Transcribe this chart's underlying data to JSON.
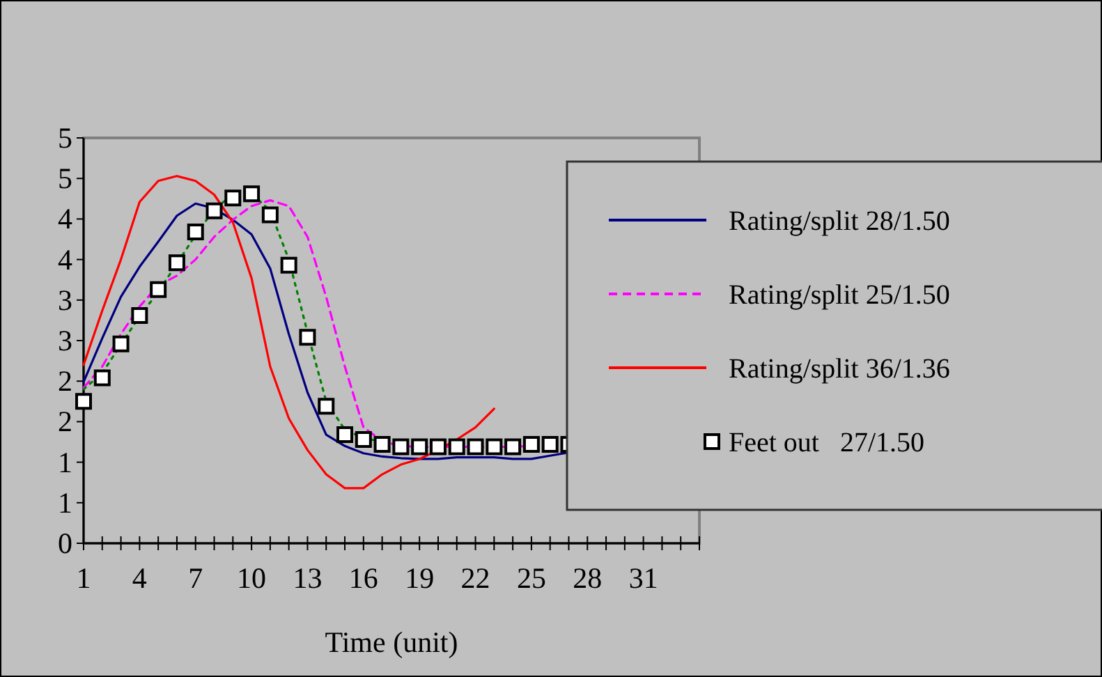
{
  "chart_data": {
    "type": "line",
    "xlabel": "Time (unit)",
    "xlim": [
      1,
      34
    ],
    "xticks": [
      1,
      {
        "value": 2,
        "label": null
      },
      {
        "value": 3,
        "label": null
      },
      4,
      {
        "value": 5,
        "label": null
      },
      {
        "value": 6,
        "label": null
      },
      7,
      {
        "value": 8,
        "label": null
      },
      {
        "value": 9,
        "label": null
      },
      10,
      {
        "value": 11,
        "label": null
      },
      {
        "value": 12,
        "label": null
      },
      13,
      {
        "value": 14,
        "label": null
      },
      {
        "value": 15,
        "label": null
      },
      16,
      {
        "value": 17,
        "label": null
      },
      {
        "value": 18,
        "label": null
      },
      19,
      {
        "value": 20,
        "label": null
      },
      {
        "value": 21,
        "label": null
      },
      22,
      {
        "value": 23,
        "label": null
      },
      {
        "value": 24,
        "label": null
      },
      25,
      {
        "value": 26,
        "label": null
      },
      {
        "value": 27,
        "label": null
      },
      28,
      {
        "value": 29,
        "label": null
      },
      {
        "value": 30,
        "label": null
      },
      31,
      {
        "value": 32,
        "label": null
      },
      {
        "value": 33,
        "label": null
      },
      {
        "value": 34,
        "label": null
      }
    ],
    "ylim": [
      0,
      5
    ],
    "yticks": [
      0,
      {
        "value": 0.5,
        "label": "1"
      },
      1,
      {
        "value": 1.5,
        "label": "2"
      },
      2,
      {
        "value": 2.5,
        "label": "3"
      },
      3,
      {
        "value": 3.5,
        "label": "4"
      },
      4,
      {
        "value": 4.5,
        "label": "5"
      },
      5
    ],
    "grid": false,
    "legend": "right",
    "series": [
      {
        "name": "Rating/split 28/1.50",
        "color": "#000080",
        "line_style": "solid",
        "x": [
          1,
          2,
          3,
          4,
          5,
          6,
          7,
          8,
          9,
          10,
          11,
          12,
          13,
          14,
          15,
          16,
          17,
          18,
          19,
          20,
          21,
          22,
          23,
          24,
          25,
          26,
          27
        ],
        "values": [
          1.99,
          2.53,
          3.04,
          3.41,
          3.72,
          4.04,
          4.19,
          4.13,
          3.99,
          3.81,
          3.39,
          2.58,
          1.86,
          1.34,
          1.2,
          1.11,
          1.07,
          1.05,
          1.04,
          1.04,
          1.06,
          1.06,
          1.06,
          1.04,
          1.04,
          1.08,
          1.12
        ]
      },
      {
        "name": "Rating/split 25/1.50",
        "color": "#ff00ff",
        "line_style": "dashed",
        "x": [
          1,
          2,
          3,
          4,
          5,
          6,
          7,
          8,
          9,
          10,
          11,
          12,
          13,
          14,
          15,
          16,
          17,
          18,
          19,
          20,
          21,
          22,
          23,
          24,
          25
        ],
        "values": [
          1.92,
          2.18,
          2.58,
          2.92,
          3.18,
          3.3,
          3.5,
          3.78,
          3.99,
          4.16,
          4.23,
          4.16,
          3.78,
          3.04,
          2.18,
          1.43,
          1.26,
          1.2,
          1.19,
          1.19,
          1.19,
          1.19,
          1.19,
          1.19,
          1.2
        ]
      },
      {
        "name": "Rating/split 36/1.36",
        "color": "#ff0000",
        "line_style": "solid",
        "x": [
          1,
          2,
          3,
          4,
          5,
          6,
          7,
          8,
          9,
          10,
          11,
          12,
          13,
          14,
          15,
          16,
          17,
          18,
          19,
          20,
          21,
          22,
          23
        ],
        "values": [
          2.2,
          2.87,
          3.5,
          4.21,
          4.47,
          4.53,
          4.47,
          4.3,
          3.96,
          3.27,
          2.18,
          1.54,
          1.15,
          0.85,
          0.68,
          0.68,
          0.85,
          0.97,
          1.04,
          1.15,
          1.28,
          1.43,
          1.66
        ]
      },
      {
        "color": "#008000",
        "line_style": "dotted",
        "x": [
          1,
          2,
          3,
          4,
          5,
          6,
          7,
          8,
          9,
          10,
          11,
          12,
          13,
          14,
          15,
          16,
          17
        ],
        "values": [
          1.9,
          2.1,
          2.45,
          2.8,
          3.1,
          3.45,
          3.8,
          4.12,
          4.3,
          4.32,
          4.1,
          3.5,
          2.6,
          1.75,
          1.4,
          1.3,
          1.25
        ]
      },
      {
        "name": "Feet out   27/1.50",
        "type": "scatter",
        "marker": "square",
        "color": "#ffffff",
        "x": [
          1,
          2,
          3,
          4,
          5,
          6,
          7,
          8,
          9,
          10,
          11,
          12,
          13,
          14,
          15,
          16,
          17,
          18,
          19,
          20,
          21,
          22,
          23,
          24,
          25,
          26,
          27
        ],
        "values": [
          1.75,
          2.04,
          2.46,
          2.81,
          3.13,
          3.46,
          3.84,
          4.1,
          4.26,
          4.31,
          4.05,
          3.43,
          2.54,
          1.69,
          1.34,
          1.28,
          1.22,
          1.19,
          1.19,
          1.19,
          1.19,
          1.19,
          1.19,
          1.19,
          1.22,
          1.22,
          1.22
        ]
      }
    ]
  }
}
